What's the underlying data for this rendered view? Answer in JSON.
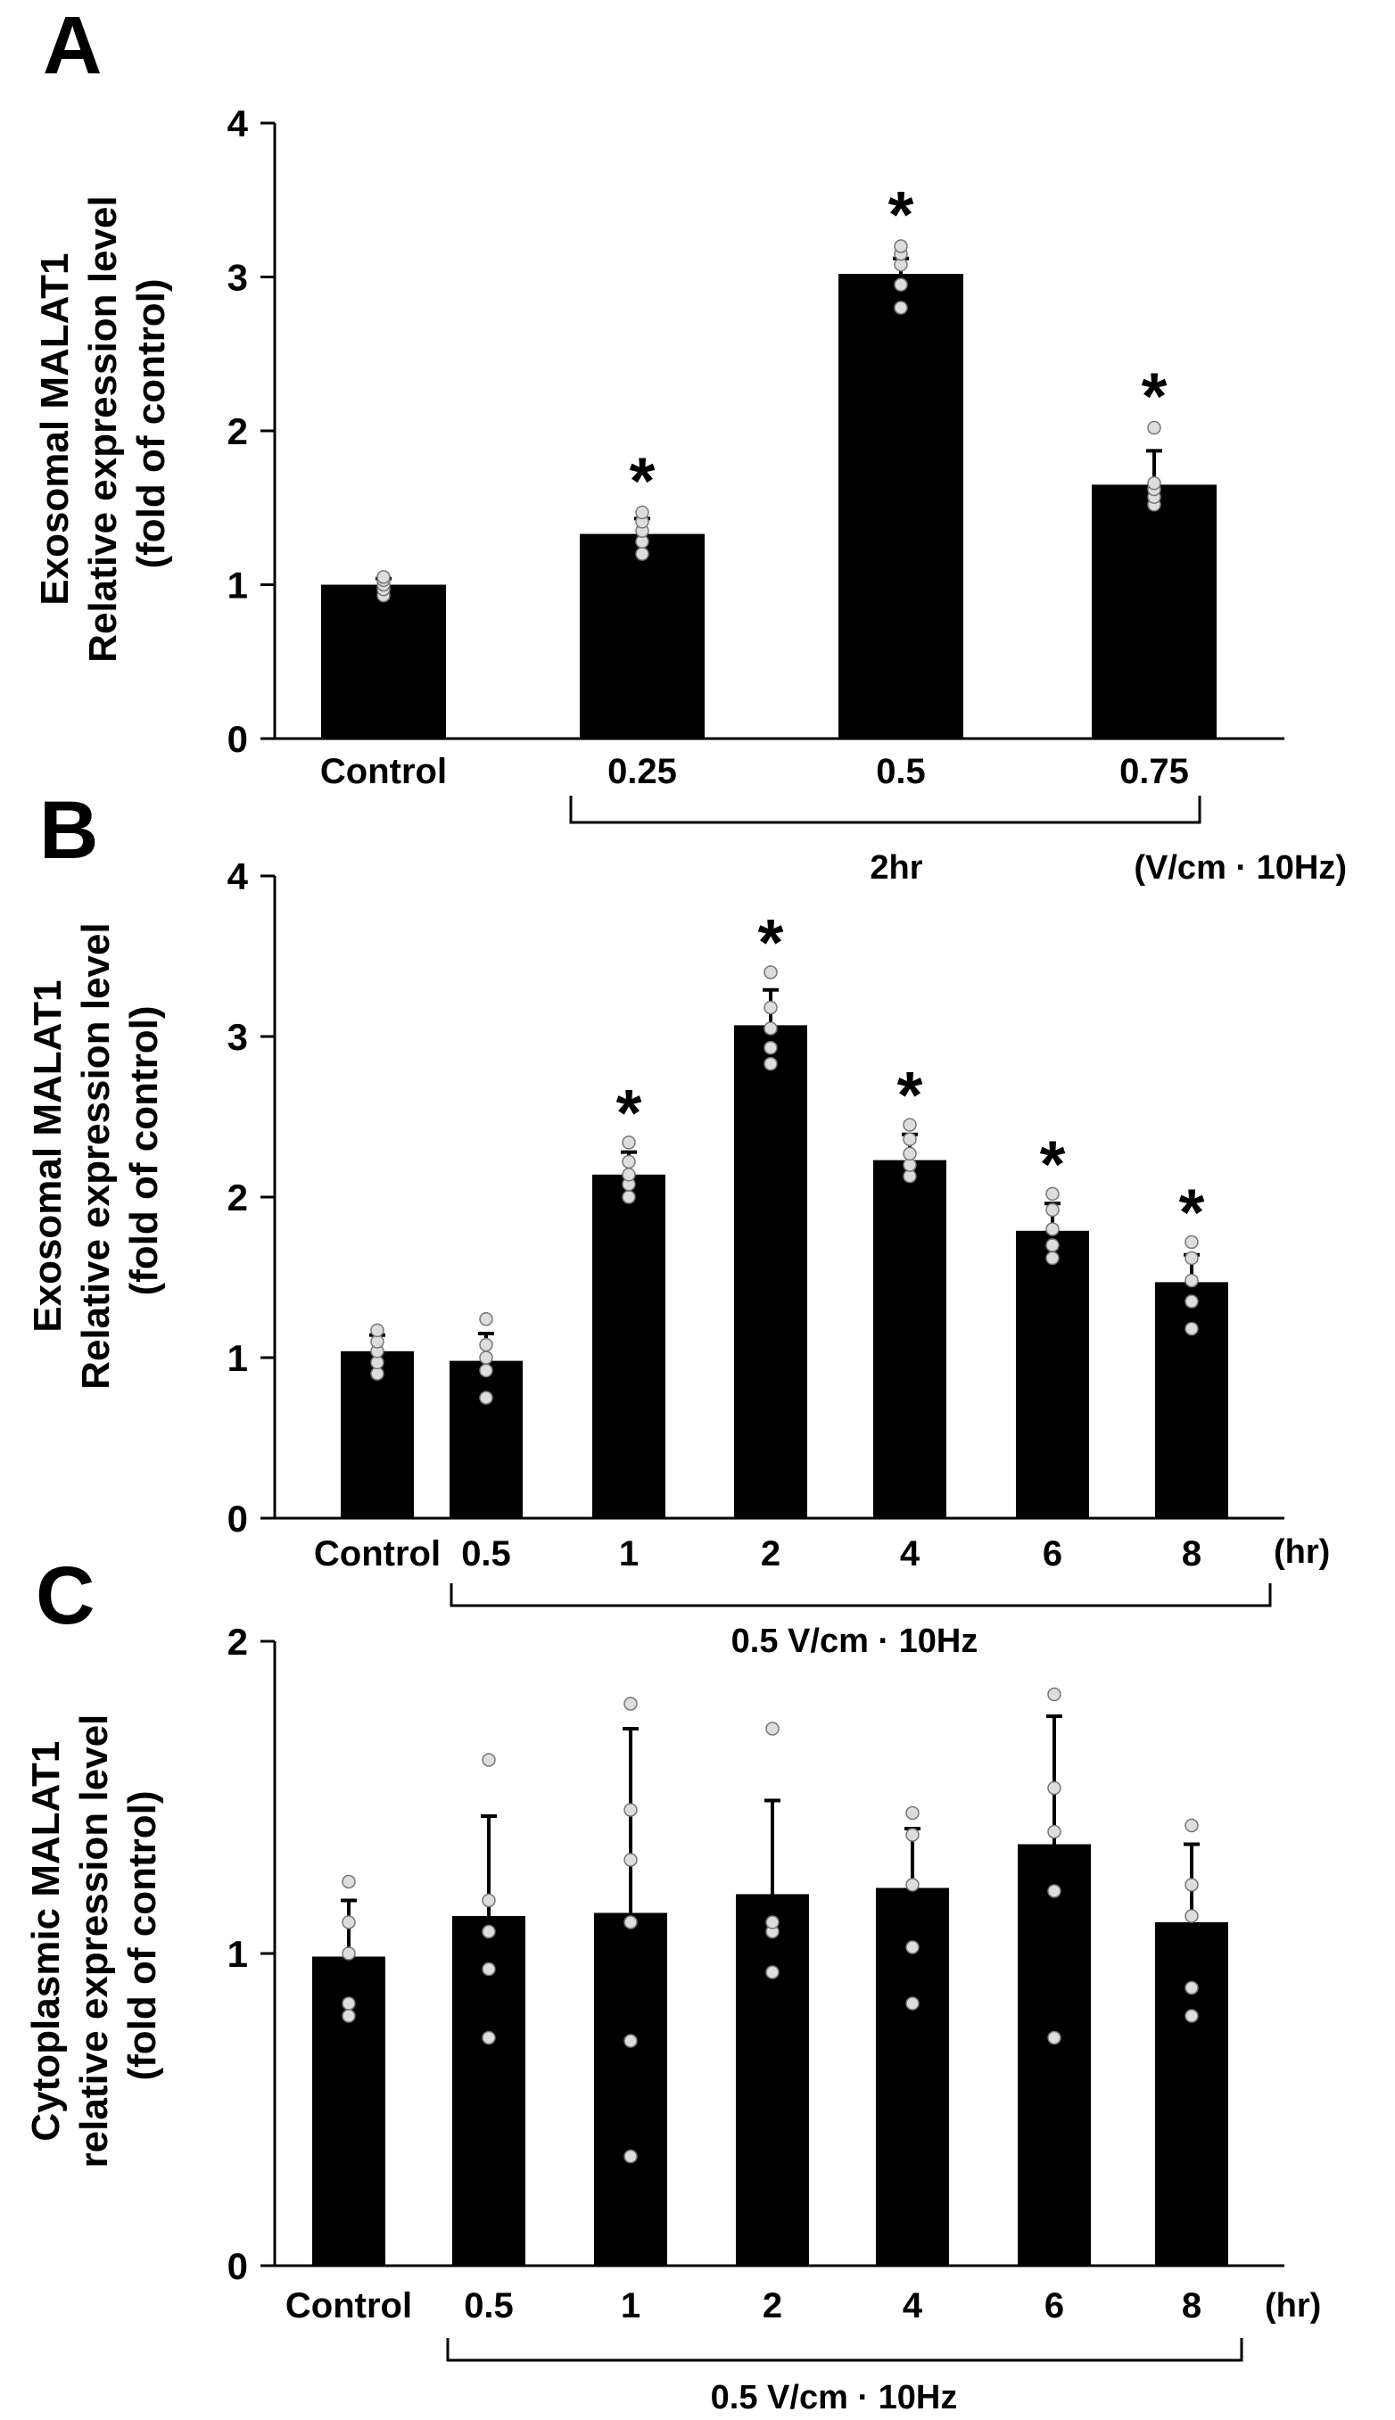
{
  "chart_data": [
    {
      "panel": "A",
      "type": "bar",
      "ylabel_lines": [
        "Exosomal MALAT1",
        "Relative expression level",
        "(fold of control)"
      ],
      "ylim": [
        0,
        4
      ],
      "yticks": [
        0,
        1,
        2,
        3,
        4
      ],
      "categories": [
        "Control",
        "0.25",
        "0.5",
        "0.75"
      ],
      "values": [
        1.0,
        1.33,
        3.02,
        1.65
      ],
      "errors": [
        0.04,
        0.1,
        0.1,
        0.22
      ],
      "points": [
        [
          0.93,
          0.97,
          1.0,
          1.03,
          1.05
        ],
        [
          1.2,
          1.28,
          1.35,
          1.41,
          1.47
        ],
        [
          2.8,
          2.95,
          3.08,
          3.15,
          3.2
        ],
        [
          1.52,
          1.57,
          1.62,
          1.66,
          2.02
        ]
      ],
      "significance": [
        "",
        "*",
        "*",
        "*"
      ],
      "group_bracket": {
        "label": "2hr",
        "from": 1,
        "to": 3
      },
      "unit_label": "(V/cm · 10Hz)",
      "bar_color": "#000000",
      "point_color": "#dddddd"
    },
    {
      "panel": "B",
      "type": "bar",
      "ylabel_lines": [
        "Exosomal MALAT1",
        "Relative expression level",
        "(fold of control)"
      ],
      "ylim": [
        0,
        4
      ],
      "yticks": [
        0,
        1,
        2,
        3,
        4
      ],
      "categories": [
        "Control",
        "0.5",
        "1",
        "2",
        "4",
        "6",
        "8"
      ],
      "values": [
        1.04,
        0.98,
        2.14,
        3.07,
        2.23,
        1.79,
        1.47
      ],
      "errors": [
        0.1,
        0.17,
        0.14,
        0.22,
        0.16,
        0.17,
        0.17
      ],
      "points": [
        [
          0.9,
          0.97,
          1.04,
          1.1,
          1.17
        ],
        [
          0.75,
          0.92,
          1.0,
          1.08,
          1.24
        ],
        [
          2.0,
          2.08,
          2.14,
          2.22,
          2.34
        ],
        [
          2.83,
          2.93,
          3.05,
          3.18,
          3.4
        ],
        [
          2.13,
          2.2,
          2.27,
          2.36,
          2.45
        ],
        [
          1.62,
          1.7,
          1.8,
          1.92,
          2.02
        ],
        [
          1.18,
          1.35,
          1.48,
          1.62,
          1.72
        ]
      ],
      "significance": [
        "",
        "",
        "*",
        "*",
        "*",
        "*",
        "*"
      ],
      "group_bracket": {
        "label": "0.5 V/cm · 10Hz",
        "from": 1,
        "to": 6
      },
      "unit_label": "(hr)",
      "bar_color": "#000000",
      "point_color": "#dddddd"
    },
    {
      "panel": "C",
      "type": "bar",
      "ylabel_lines": [
        "Cytoplasmic MALAT1",
        "relative expression level",
        "(fold of control)"
      ],
      "ylim": [
        0,
        2
      ],
      "yticks": [
        0,
        1,
        2
      ],
      "categories": [
        "Control",
        "0.5",
        "1",
        "2",
        "4",
        "6",
        "8"
      ],
      "values": [
        0.99,
        1.12,
        1.13,
        1.19,
        1.21,
        1.35,
        1.1
      ],
      "errors": [
        0.18,
        0.32,
        0.59,
        0.3,
        0.19,
        0.41,
        0.25
      ],
      "points": [
        [
          0.8,
          0.84,
          1.0,
          1.1,
          1.23
        ],
        [
          0.73,
          0.95,
          1.07,
          1.17,
          1.62
        ],
        [
          0.35,
          0.72,
          1.1,
          1.3,
          1.46,
          1.8
        ],
        [
          0.94,
          1.07,
          1.1,
          1.72
        ],
        [
          0.84,
          1.02,
          1.22,
          1.38,
          1.45
        ],
        [
          0.73,
          1.2,
          1.39,
          1.53,
          1.83
        ],
        [
          0.8,
          0.89,
          1.12,
          1.22,
          1.41
        ]
      ],
      "significance": [
        "",
        "",
        "",
        "",
        "",
        "",
        ""
      ],
      "group_bracket": {
        "label": "0.5 V/cm · 10Hz",
        "from": 1,
        "to": 6
      },
      "unit_label": "(hr)",
      "bar_color": "#000000",
      "point_color": "#dddddd"
    }
  ],
  "panel_labels": [
    "A",
    "B",
    "C"
  ]
}
